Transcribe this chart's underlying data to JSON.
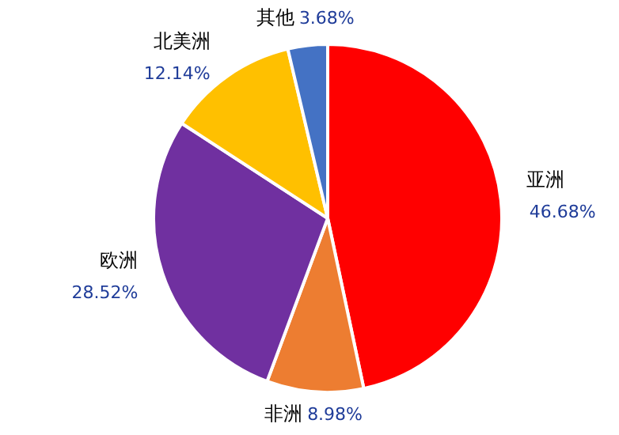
{
  "chart_data": {
    "type": "pie",
    "categories": [
      "亚洲",
      "非洲",
      "欧洲",
      "北美洲",
      "其他"
    ],
    "values": [
      46.68,
      8.98,
      28.52,
      12.14,
      3.68
    ],
    "colors": [
      "#ff0000",
      "#ed7d31",
      "#7030a0",
      "#ffc000",
      "#4472c4"
    ],
    "value_labels": [
      "46.68%",
      "8.98%",
      "28.52%",
      "12.14%",
      "3.68%"
    ]
  }
}
